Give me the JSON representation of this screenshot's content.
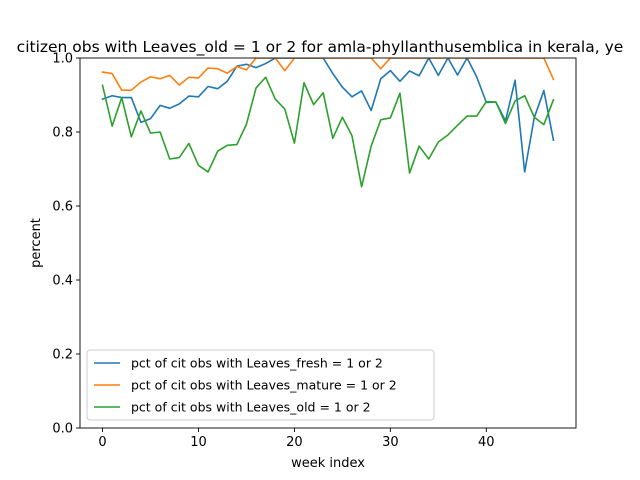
{
  "chart_data": {
    "type": "line",
    "title": "citizen obs with Leaves_old = 1 or 2 for amla-phyllanthusemblica in kerala, ye",
    "xlabel": "week index",
    "ylabel": "percent",
    "xlim": [
      -2.35,
      49.35
    ],
    "ylim": [
      0.0,
      1.0
    ],
    "xticks": [
      0,
      10,
      20,
      30,
      40
    ],
    "yticks": [
      0.0,
      0.2,
      0.4,
      0.6,
      0.8,
      1.0
    ],
    "xtick_labels": [
      "0",
      "10",
      "20",
      "30",
      "40"
    ],
    "ytick_labels": [
      "0.0",
      "0.2",
      "0.4",
      "0.6",
      "0.8",
      "1.0"
    ],
    "grid": false,
    "legend_position": "lower-left",
    "x": [
      0,
      1,
      2,
      3,
      4,
      5,
      6,
      7,
      8,
      9,
      10,
      11,
      12,
      13,
      14,
      15,
      16,
      17,
      18,
      19,
      20,
      21,
      22,
      23,
      24,
      25,
      26,
      27,
      28,
      29,
      30,
      31,
      32,
      33,
      34,
      35,
      36,
      37,
      38,
      39,
      40,
      41,
      42,
      43,
      44,
      45,
      46,
      47
    ],
    "series": [
      {
        "name": "pct of cit obs with Leaves_fresh = 1 or 2",
        "color": "#1f77b4",
        "values": [
          0.889,
          0.898,
          0.893,
          0.893,
          0.826,
          0.836,
          0.872,
          0.864,
          0.876,
          0.897,
          0.895,
          0.923,
          0.917,
          0.937,
          0.978,
          0.983,
          0.974,
          0.985,
          1.0,
          1.0,
          1.0,
          1.0,
          1.0,
          1.0,
          0.958,
          0.921,
          0.895,
          0.911,
          0.858,
          0.944,
          0.966,
          0.937,
          0.965,
          0.952,
          1.0,
          0.953,
          1.0,
          0.954,
          1.0,
          0.949,
          0.88,
          0.881,
          0.83,
          0.94,
          0.692,
          0.839,
          0.912,
          0.778
        ]
      },
      {
        "name": "pct of cit obs with Leaves_mature = 1 or 2",
        "color": "#ff7f0e",
        "values": [
          0.962,
          0.958,
          0.913,
          0.913,
          0.935,
          0.949,
          0.944,
          0.953,
          0.927,
          0.948,
          0.946,
          0.973,
          0.971,
          0.959,
          0.977,
          0.968,
          1.0,
          1.0,
          1.0,
          0.966,
          1.0,
          1.0,
          1.0,
          1.0,
          1.0,
          1.0,
          1.0,
          1.0,
          1.0,
          0.971,
          1.0,
          1.0,
          1.0,
          1.0,
          1.0,
          1.0,
          1.0,
          1.0,
          1.0,
          1.0,
          1.0,
          1.0,
          1.0,
          1.0,
          1.0,
          1.0,
          1.0,
          0.942
        ]
      },
      {
        "name": "pct of cit obs with Leaves_old = 1 or 2",
        "color": "#2ca02c",
        "values": [
          0.926,
          0.816,
          0.893,
          0.787,
          0.857,
          0.797,
          0.8,
          0.727,
          0.731,
          0.769,
          0.71,
          0.692,
          0.748,
          0.764,
          0.766,
          0.821,
          0.919,
          0.948,
          0.889,
          0.862,
          0.77,
          0.933,
          0.874,
          0.906,
          0.783,
          0.84,
          0.79,
          0.652,
          0.762,
          0.833,
          0.838,
          0.905,
          0.689,
          0.762,
          0.727,
          0.773,
          0.792,
          0.818,
          0.843,
          0.843,
          0.882,
          0.881,
          0.823,
          0.884,
          0.898,
          0.84,
          0.82,
          0.887
        ]
      }
    ]
  }
}
